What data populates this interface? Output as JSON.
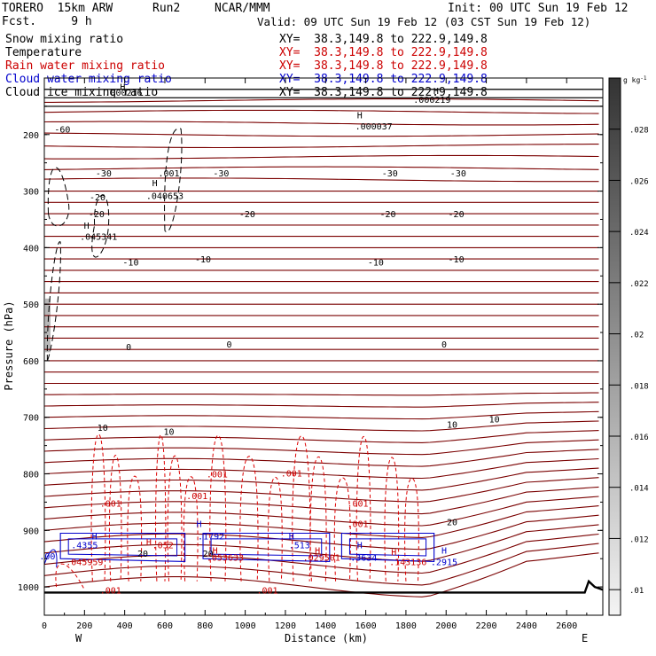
{
  "header": {
    "model": "TORERO  15km ARW",
    "run": "Run2",
    "org": "NCAR/MMM",
    "init": "Init: 00 UTC Sun 19 Feb 12",
    "fcst": "Fcst.     9 h",
    "valid": "Valid: 09 UTC Sun 19 Feb 12 (03 CST Sun 19 Feb 12)"
  },
  "legend": [
    {
      "label": "Snow mixing ratio",
      "xy": "XY=  38.3,149.8 to 222.9,149.8",
      "label_color": "#000000",
      "xy_color": "#000000"
    },
    {
      "label": "Temperature",
      "xy": "XY=  38.3,149.8 to 222.9,149.8",
      "label_color": "#000000",
      "xy_color": "#cc0000"
    },
    {
      "label": "Rain water mixing ratio",
      "xy": "XY=  38.3,149.8 to 222.9,149.8",
      "label_color": "#cc0000",
      "xy_color": "#cc0000"
    },
    {
      "label": "Cloud water mixing ratio",
      "xy": "XY=  38.3,149.8 to 222.9,149.8",
      "label_color": "#0000cc",
      "xy_color": "#0000cc"
    },
    {
      "label": "Cloud ice mixing ratio",
      "xy": "XY=  38.3,149.8 to 222.9,149.8",
      "label_color": "#000000",
      "xy_color": "#000000"
    }
  ],
  "chart_data": {
    "type": "cross-section contour",
    "xlabel": "Distance (km)",
    "ylabel": "Pressure (hPa)",
    "xlim": [
      0,
      2780
    ],
    "ylim": [
      1050,
      100
    ],
    "x_ticks": [
      "0",
      "200",
      "400",
      "600",
      "800",
      "1000",
      "1200",
      "1400",
      "1600",
      "1800",
      "2000",
      "2200",
      "2400",
      "2600"
    ],
    "y_ticks": [
      "200",
      "300",
      "400",
      "500",
      "600",
      "700",
      "800",
      "900",
      "1000"
    ],
    "x_end_labels": [
      "W",
      "E"
    ],
    "colorbar": {
      "unit": "g kg",
      "unit_exp": "-1",
      "ticks": [
        ".01",
        ".012",
        ".014",
        ".016",
        ".018",
        ".02",
        ".022",
        ".024",
        ".026",
        ".028"
      ],
      "range": [
        0.009,
        0.03
      ]
    },
    "temperature_contours": [
      {
        "label": "-60",
        "p": 180,
        "points": [
          [
            0,
            180
          ],
          [
            2780,
            180
          ]
        ]
      },
      {
        "label": "-30",
        "p": 265,
        "points": [
          [
            0,
            263
          ],
          [
            2780,
            263
          ]
        ]
      },
      {
        "label": "-20",
        "p": 345,
        "points": [
          [
            0,
            345
          ],
          [
            2780,
            345
          ]
        ]
      },
      {
        "label": "-10",
        "p": 425,
        "points": [
          [
            0,
            425
          ],
          [
            2780,
            425
          ]
        ]
      },
      {
        "label": "0",
        "p": 570,
        "points": [
          [
            0,
            575
          ],
          [
            2780,
            570
          ]
        ]
      },
      {
        "label": "10",
        "p": 710,
        "points": [
          [
            0,
            715
          ],
          [
            2780,
            705
          ]
        ]
      },
      {
        "label": "20",
        "p": 880,
        "points": [
          [
            0,
            890
          ],
          [
            2780,
            880
          ]
        ]
      }
    ],
    "labels": {
      "temperature": [
        {
          "text": "-60",
          "x": 90,
          "p": 190
        },
        {
          "text": "-30",
          "x": 295,
          "p": 268
        },
        {
          "text": "-30",
          "x": 880,
          "p": 268
        },
        {
          "text": "-30",
          "x": 1720,
          "p": 268
        },
        {
          "text": "-30",
          "x": 2060,
          "p": 268
        },
        {
          "text": "-20",
          "x": 260,
          "p": 340
        },
        {
          "text": "-20",
          "x": 1010,
          "p": 340
        },
        {
          "text": "-20",
          "x": 1710,
          "p": 340
        },
        {
          "text": "-20",
          "x": 2050,
          "p": 340
        },
        {
          "text": "-10",
          "x": 430,
          "p": 425
        },
        {
          "text": "-10",
          "x": 790,
          "p": 420
        },
        {
          "text": "-10",
          "x": 1650,
          "p": 425
        },
        {
          "text": "-10",
          "x": 2050,
          "p": 420
        },
        {
          "text": "0",
          "x": 420,
          "p": 575
        },
        {
          "text": "0",
          "x": 920,
          "p": 570
        },
        {
          "text": "0",
          "x": 1990,
          "p": 570
        },
        {
          "text": "10",
          "x": 290,
          "p": 718
        },
        {
          "text": "10",
          "x": 620,
          "p": 725
        },
        {
          "text": "10",
          "x": 2030,
          "p": 712
        },
        {
          "text": "10",
          "x": 2240,
          "p": 703
        },
        {
          "text": "20",
          "x": 490,
          "p": 940
        },
        {
          "text": "20",
          "x": 815,
          "p": 940
        },
        {
          "text": "20",
          "x": 2030,
          "p": 885
        }
      ],
      "snow": [
        {
          "text": ".001",
          "x": 620,
          "p": 268
        },
        {
          "text": ".000219",
          "x": 1930,
          "p": 138
        },
        {
          "text": ".000037",
          "x": 1640,
          "p": 185
        },
        {
          "text": ".000216",
          "x": 395,
          "p": 125
        }
      ],
      "cloud_ice": [
        {
          "text": ".040653",
          "x": 600,
          "p": 308
        },
        {
          "text": ".045341",
          "x": 270,
          "p": 380
        },
        {
          "text": "-20",
          "x": 265,
          "p": 310
        }
      ],
      "rain": [
        {
          "text": ".001",
          "x": 330,
          "p": 852
        },
        {
          "text": ".001",
          "x": 860,
          "p": 800
        },
        {
          "text": ".001",
          "x": 760,
          "p": 838
        },
        {
          "text": ".001",
          "x": 1230,
          "p": 798
        },
        {
          "text": ".001",
          "x": 1560,
          "p": 852
        },
        {
          "text": ".001",
          "x": 1560,
          "p": 888
        },
        {
          "text": ".001",
          "x": 330,
          "p": 1005
        },
        {
          "text": ".001",
          "x": 1110,
          "p": 1005
        },
        {
          "text": ".045959",
          "x": 200,
          "p": 955
        },
        {
          "text": ".143136",
          "x": 1810,
          "p": 955
        },
        {
          "text": ".053633",
          "x": 900,
          "p": 947
        },
        {
          "text": ".029501",
          "x": 1380,
          "p": 947
        },
        {
          "text": ".052",
          "x": 590,
          "p": 925
        }
      ],
      "cloud_water": [
        {
          "text": ".4355",
          "x": 200,
          "p": 925
        },
        {
          "text": ".1792",
          "x": 830,
          "p": 910
        },
        {
          "text": ".513",
          "x": 1270,
          "p": 925
        },
        {
          "text": ".3634",
          "x": 1590,
          "p": 947
        },
        {
          "text": ".2915",
          "x": 1990,
          "p": 955
        },
        {
          "text": ".00",
          "x": 15,
          "p": 945
        }
      ],
      "highs": [
        {
          "x": 1570,
          "p": 165,
          "color": "#000000"
        },
        {
          "x": 1950,
          "p": 122,
          "color": "#000000"
        },
        {
          "x": 550,
          "p": 285,
          "color": "#000000"
        },
        {
          "x": 210,
          "p": 360,
          "color": "#000000"
        },
        {
          "x": 390,
          "p": 115,
          "color": "#000000"
        },
        {
          "x": 250,
          "p": 910,
          "color": "#0000cc"
        },
        {
          "x": 770,
          "p": 888,
          "color": "#0000cc"
        },
        {
          "x": 1230,
          "p": 910,
          "color": "#0000cc"
        },
        {
          "x": 1570,
          "p": 925,
          "color": "#0000cc"
        },
        {
          "x": 1990,
          "p": 935,
          "color": "#0000cc"
        },
        {
          "x": 520,
          "p": 920,
          "color": "#cc0000"
        },
        {
          "x": 850,
          "p": 935,
          "color": "#cc0000"
        },
        {
          "x": 1360,
          "p": 935,
          "color": "#cc0000"
        },
        {
          "x": 1740,
          "p": 938,
          "color": "#cc0000"
        }
      ]
    }
  }
}
